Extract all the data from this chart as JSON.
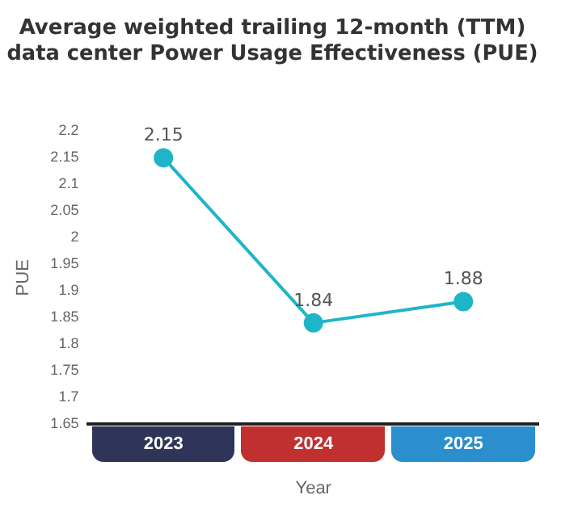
{
  "chart_data": {
    "type": "line",
    "title": "Average weighted trailing 12-month (TTM)\ndata center Power Usage Effectiveness (PUE)",
    "xlabel": "Year",
    "ylabel": "PUE",
    "categories": [
      "2023",
      "2024",
      "2025"
    ],
    "series": [
      {
        "color": "#1fb5c9",
        "values": [
          2.15,
          1.84,
          1.88
        ]
      }
    ],
    "ylim": [
      1.65,
      2.2
    ],
    "yticks": [
      1.65,
      1.7,
      1.75,
      1.8,
      1.85,
      1.9,
      1.95,
      2,
      2.05,
      2.1,
      2.15,
      2.2
    ],
    "grid": false,
    "legend": false,
    "marker": "circle",
    "line_style": "solid",
    "data_labels": true
  }
}
